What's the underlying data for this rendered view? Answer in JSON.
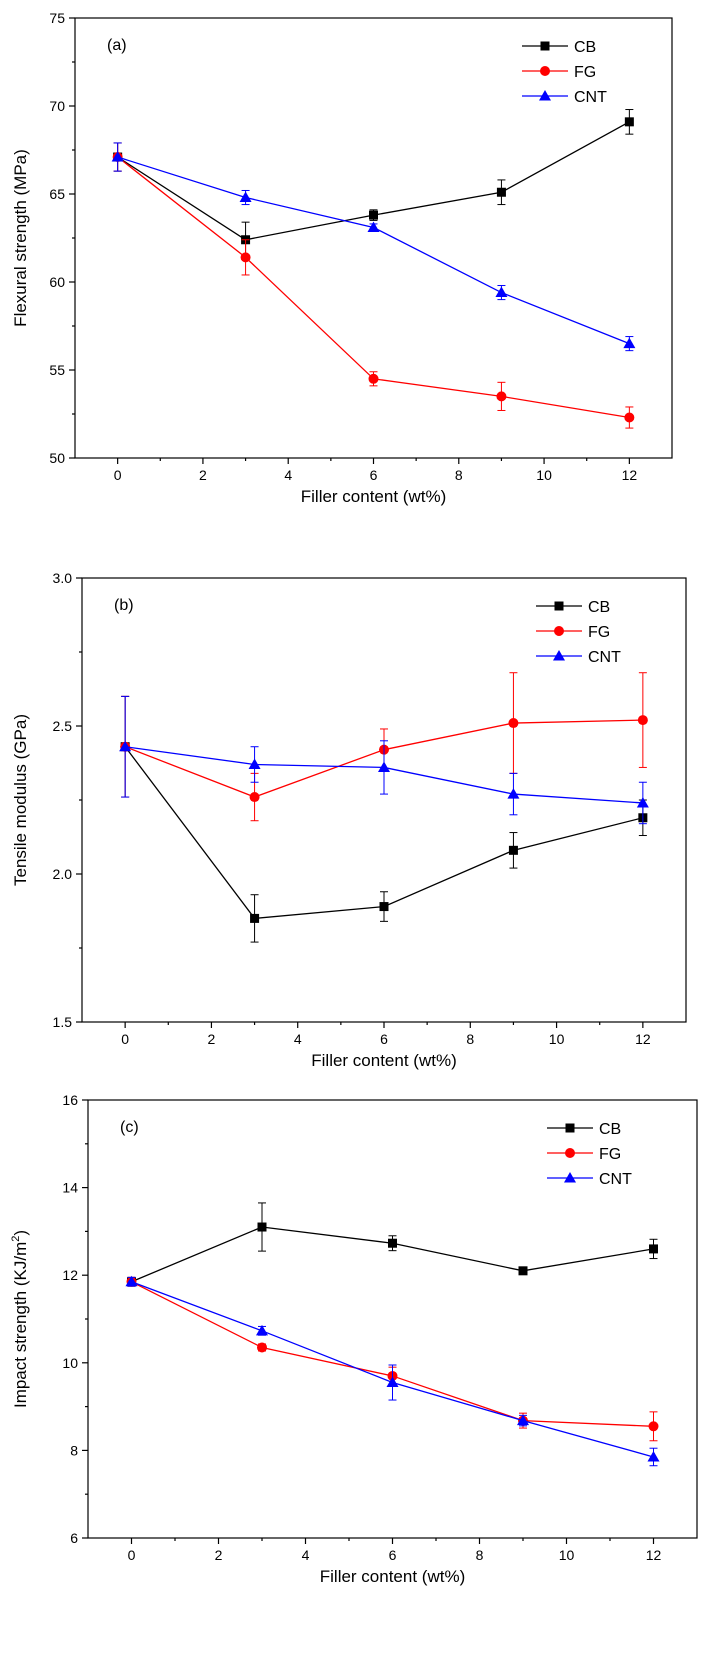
{
  "chart_data": [
    {
      "type": "line",
      "panel_label": "(a)",
      "xlabel": "Filler content (wt%)",
      "ylabel": "Flexural strength (MPa)",
      "xlim": [
        -1,
        13
      ],
      "ylim": [
        50,
        75
      ],
      "xticks": [
        0,
        2,
        4,
        6,
        8,
        10,
        12
      ],
      "yticks": [
        50,
        55,
        60,
        65,
        70,
        75
      ],
      "legend_position": "top-right",
      "x": [
        0,
        3,
        6,
        9,
        12
      ],
      "series": [
        {
          "name": "CB",
          "color": "#000000",
          "marker": "square",
          "values": [
            67.1,
            62.4,
            63.8,
            65.1,
            69.1
          ],
          "errors": [
            0.8,
            1.0,
            0.3,
            0.7,
            0.7
          ]
        },
        {
          "name": "FG",
          "color": "#ff0000",
          "marker": "circle",
          "values": [
            67.1,
            61.4,
            54.5,
            53.5,
            52.3
          ],
          "errors": [
            0.8,
            1.0,
            0.4,
            0.8,
            0.6
          ]
        },
        {
          "name": "CNT",
          "color": "#0000ff",
          "marker": "triangle",
          "values": [
            67.1,
            64.8,
            63.1,
            59.4,
            56.5
          ],
          "errors": [
            0.8,
            0.4,
            0.2,
            0.4,
            0.4
          ]
        }
      ]
    },
    {
      "type": "line",
      "panel_label": "(b)",
      "xlabel": "Filler content (wt%)",
      "ylabel": "Tensile modulus (GPa)",
      "xlim": [
        -1,
        13
      ],
      "ylim": [
        1.5,
        3.0
      ],
      "xticks": [
        0,
        2,
        4,
        6,
        8,
        10,
        12
      ],
      "yticks": [
        "1.5",
        "2.0",
        "2.5",
        "3.0"
      ],
      "legend_position": "top-right",
      "x": [
        0,
        3,
        6,
        9,
        12
      ],
      "series": [
        {
          "name": "CB",
          "color": "#000000",
          "marker": "square",
          "values": [
            2.43,
            1.85,
            1.89,
            2.08,
            2.19
          ],
          "errors": [
            0.17,
            0.08,
            0.05,
            0.06,
            0.06
          ]
        },
        {
          "name": "FG",
          "color": "#ff0000",
          "marker": "circle",
          "values": [
            2.43,
            2.26,
            2.42,
            2.51,
            2.52
          ],
          "errors": [
            0.17,
            0.08,
            0.07,
            0.17,
            0.16
          ]
        },
        {
          "name": "CNT",
          "color": "#0000ff",
          "marker": "triangle",
          "values": [
            2.43,
            2.37,
            2.36,
            2.27,
            2.24
          ],
          "errors": [
            0.17,
            0.06,
            0.09,
            0.07,
            0.07
          ]
        }
      ]
    },
    {
      "type": "line",
      "panel_label": "(c)",
      "xlabel": "Filler content (wt%)",
      "ylabel": "Impact strength (KJ/m",
      "ylabel_sup": "2",
      "ylabel_close": ")",
      "xlim": [
        -1,
        13
      ],
      "ylim": [
        6,
        16
      ],
      "xticks": [
        0,
        2,
        4,
        6,
        8,
        10,
        12
      ],
      "yticks": [
        6,
        8,
        10,
        12,
        14,
        16
      ],
      "legend_position": "top-right",
      "x": [
        0,
        3,
        6,
        9,
        12
      ],
      "series": [
        {
          "name": "CB",
          "color": "#000000",
          "marker": "square",
          "values": [
            11.85,
            13.1,
            12.73,
            12.1,
            12.6
          ],
          "errors": [
            0.1,
            0.55,
            0.17,
            0.05,
            0.22
          ]
        },
        {
          "name": "FG",
          "color": "#ff0000",
          "marker": "circle",
          "values": [
            11.85,
            10.35,
            9.7,
            8.68,
            8.55
          ],
          "errors": [
            0.1,
            0.08,
            0.2,
            0.17,
            0.33
          ]
        },
        {
          "name": "CNT",
          "color": "#0000ff",
          "marker": "triangle",
          "values": [
            11.85,
            10.73,
            9.55,
            8.68,
            7.85
          ],
          "errors": [
            0.1,
            0.1,
            0.4,
            0.12,
            0.2
          ]
        }
      ]
    }
  ]
}
